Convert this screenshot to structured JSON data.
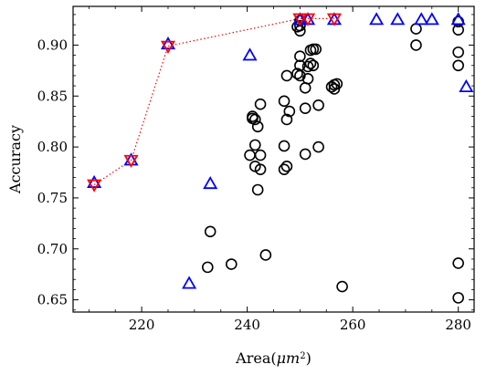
{
  "chart_data": {
    "type": "scatter",
    "title": "",
    "xlabel": "Area(",
    "xlabel_var": "μm",
    "xlabel_sup": "2",
    "xlabel_close": ")",
    "ylabel": "Accuracy",
    "xlim": [
      207,
      283
    ],
    "ylim": [
      0.638,
      0.938
    ],
    "x_ticks": [
      220,
      240,
      260,
      280
    ],
    "x_tick_labels": [
      "220",
      "240",
      "260",
      "280"
    ],
    "y_ticks": [
      0.65,
      0.7,
      0.75,
      0.8,
      0.85,
      0.9
    ],
    "y_tick_labels": [
      "0.65",
      "0.70",
      "0.75",
      "0.80",
      "0.85",
      "0.90"
    ],
    "grid": false,
    "colors": {
      "circles": "#000000",
      "triangles": "#0000ff",
      "pareto": "#ff0000"
    },
    "series": [
      {
        "marker": "circle",
        "x": [
          232.5,
          233,
          237,
          243.5,
          242,
          242.5,
          240.5,
          241.5,
          242,
          241,
          241.5,
          242.5,
          241,
          241.5,
          242.5,
          247,
          247.5,
          247,
          247.5,
          248,
          247,
          247.5,
          249.5,
          250,
          250,
          250,
          249.5,
          250,
          250,
          250,
          251,
          251.5,
          251,
          251.5,
          252,
          252.5,
          252.5,
          252,
          253,
          253.5,
          251,
          253.5,
          256,
          256.5,
          257,
          256.5,
          258,
          272,
          272,
          280,
          280,
          280,
          280,
          280,
          280
        ],
        "y": [
          0.682,
          0.717,
          0.685,
          0.694,
          0.758,
          0.778,
          0.792,
          0.781,
          0.82,
          0.828,
          0.802,
          0.842,
          0.83,
          0.827,
          0.792,
          0.778,
          0.781,
          0.801,
          0.827,
          0.835,
          0.845,
          0.87,
          0.918,
          0.919,
          0.914,
          0.87,
          0.872,
          0.88,
          0.889,
          0.924,
          0.858,
          0.867,
          0.838,
          0.879,
          0.895,
          0.88,
          0.896,
          0.882,
          0.896,
          0.841,
          0.793,
          0.8,
          0.859,
          0.861,
          0.862,
          0.857,
          0.663,
          0.9,
          0.916,
          0.923,
          0.915,
          0.893,
          0.88,
          0.686,
          0.652
        ]
      },
      {
        "marker": "triangle-up",
        "x": [
          211,
          218,
          225,
          229,
          233,
          240.5,
          250,
          251.5,
          256.5,
          264.5,
          268.5,
          273,
          275,
          280,
          281.5
        ],
        "y": [
          0.765,
          0.787,
          0.901,
          0.666,
          0.764,
          0.89,
          0.925,
          0.925,
          0.925,
          0.925,
          0.925,
          0.925,
          0.925,
          0.925,
          0.859
        ]
      },
      {
        "marker": "triangle-down",
        "line": "dotted",
        "x": [
          211,
          218,
          225,
          250,
          251.5,
          256.5
        ],
        "y": [
          0.763,
          0.787,
          0.899,
          0.926,
          0.926,
          0.926
        ]
      }
    ]
  }
}
